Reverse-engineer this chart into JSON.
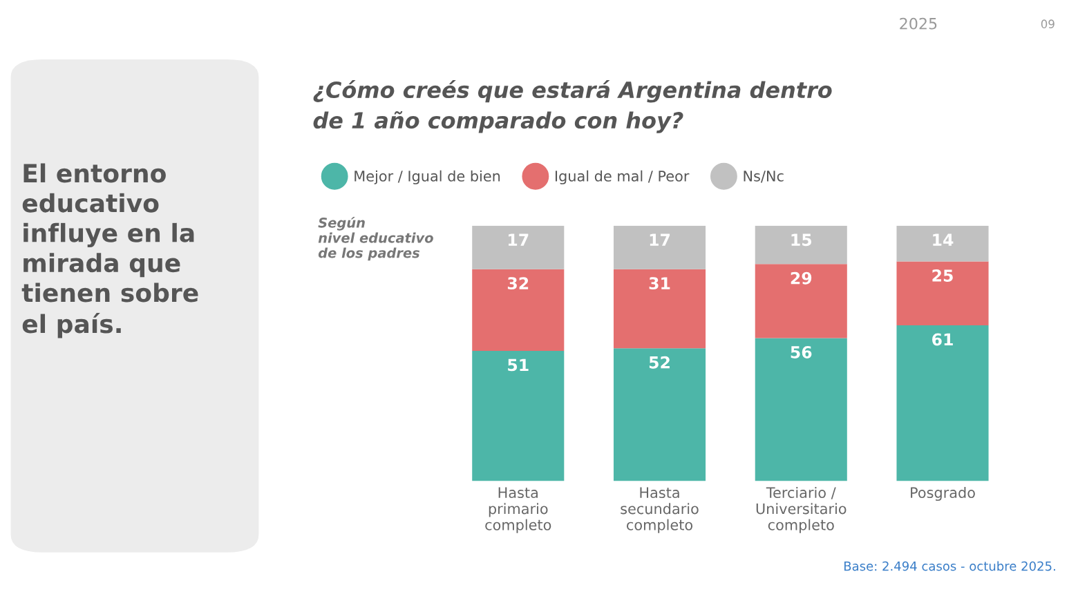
{
  "chart_data": {
    "type": "bar",
    "stacked": true,
    "data_labels": true,
    "legend": "top left",
    "title": "¿Cómo creés que estará Argentina dentro\nde 1 año comparado con hoy?",
    "subtitle": "Según\nnivel educativo\nde los padres",
    "categories": [
      "Hasta\nprimario\ncompleto",
      "Hasta\nsecundario\ncompleto",
      "Terciario /\nUniversitario\ncompleto",
      "Posgrado"
    ],
    "series": [
      {
        "name": "Mejor / Igual de bien",
        "color": "#4db6a8",
        "values": [
          51,
          52,
          56,
          61
        ]
      },
      {
        "name": "Igual de mal / Peor",
        "color": "#e46f6f",
        "values": [
          32,
          31,
          29,
          25
        ]
      },
      {
        "name": "Ns/Nc",
        "color": "#c1c1c1",
        "values": [
          17,
          17,
          15,
          14
        ]
      }
    ],
    "annotations": [
      "El entorno\neducativo\ninfluye en la\nmirada que\ntienen sobre\nel país.",
      "Base: 2.494 casos - octubre 2025.",
      "2025",
      "09"
    ]
  }
}
